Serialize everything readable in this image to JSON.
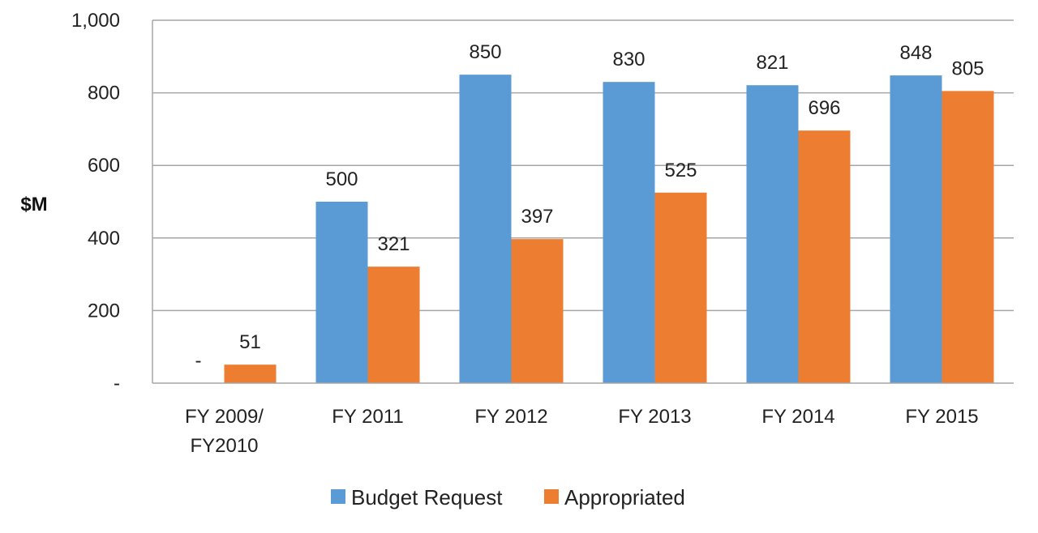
{
  "chart_data": {
    "type": "bar",
    "title": "",
    "xlabel": "",
    "ylabel": "$M",
    "ylim": [
      0,
      1000
    ],
    "yticks": [
      {
        "value": 0,
        "label": "-"
      },
      {
        "value": 200,
        "label": "200"
      },
      {
        "value": 400,
        "label": "400"
      },
      {
        "value": 600,
        "label": "600"
      },
      {
        "value": 800,
        "label": "800"
      },
      {
        "value": 1000,
        "label": "1,000"
      }
    ],
    "grid": true,
    "legend": "bottom",
    "categories": [
      [
        "FY 2009/",
        "FY2010"
      ],
      [
        "FY 2011"
      ],
      [
        "FY 2012"
      ],
      [
        "FY 2013"
      ],
      [
        "FY 2014"
      ],
      [
        "FY 2015"
      ]
    ],
    "series": [
      {
        "name": "Budget Request",
        "color": "#5b9bd5",
        "values": [
          0,
          500,
          850,
          830,
          821,
          848
        ],
        "labels": [
          "-",
          "500",
          "850",
          "830",
          "821",
          "848"
        ]
      },
      {
        "name": "Appropriated",
        "color": "#ed7d31",
        "values": [
          51,
          321,
          397,
          525,
          696,
          805
        ],
        "labels": [
          "51",
          "321",
          "397",
          "525",
          "696",
          "805"
        ]
      }
    ],
    "gridline_color": "#a6a6a6"
  }
}
